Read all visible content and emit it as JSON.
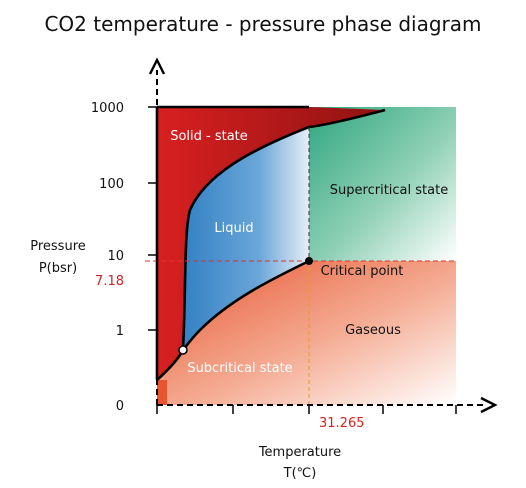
{
  "title": "CO2 temperature - pressure phase diagram",
  "y_axis": {
    "label_line1": "Pressure",
    "label_line2": "P(bsr)",
    "ticks": [
      "1000",
      "100",
      "10",
      "1",
      "0"
    ]
  },
  "x_axis": {
    "label_line1": "Temperature",
    "label_line2": "T(℃)"
  },
  "regions": {
    "solid": "Solid - state",
    "liquid": "Liquid",
    "supercritical": "Supercritical state",
    "gaseous": "Gaseous",
    "subcritical": "Subcritical state"
  },
  "critical_point": {
    "label": "Critical point",
    "pressure": "7.18",
    "temperature": "31.265"
  },
  "colors": {
    "solid": "#c41d1d",
    "liquid": "#3b86c8",
    "supercritical": "#3aae8a",
    "gaseous": "#e8603a",
    "guide": "#e03030",
    "boundary": "#000000"
  }
}
